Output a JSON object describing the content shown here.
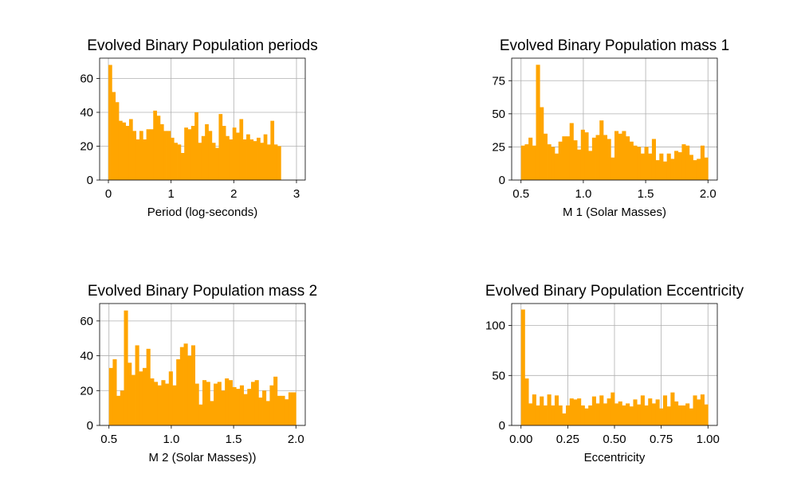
{
  "colors": {
    "bar": "#ffa500",
    "grid": "#b0b0b0",
    "axis": "#000000"
  },
  "chart_data": [
    {
      "type": "bar",
      "title": "Evolved Binary Population periods",
      "xlabel": "Period (log-seconds)",
      "ylabel": "",
      "grid": true,
      "xlim": [
        -0.14,
        3.14
      ],
      "ylim": [
        0,
        72
      ],
      "xticks": [
        0,
        1,
        2,
        3
      ],
      "xtick_labels": [
        "0",
        "1",
        "2",
        "3"
      ],
      "yticks": [
        0,
        20,
        40,
        60
      ],
      "ytick_labels": [
        "0",
        "20",
        "40",
        "60"
      ],
      "bin_start": 0.0,
      "bin_width": 0.055,
      "values": [
        68,
        52,
        46,
        35,
        34,
        32,
        36,
        29,
        24,
        29,
        24,
        30,
        30,
        41,
        38,
        33,
        29,
        29,
        25,
        22,
        21,
        16,
        31,
        30,
        32,
        40,
        22,
        26,
        33,
        29,
        22,
        19,
        39,
        32,
        26,
        24,
        31,
        28,
        36,
        24,
        27,
        24,
        23,
        25,
        22,
        27,
        21,
        35,
        21,
        20
      ]
    },
    {
      "type": "bar",
      "title": "Evolved Binary Population mass 1",
      "xlabel": "M 1 (Solar Masses)",
      "ylabel": "",
      "grid": true,
      "xlim": [
        0.425,
        2.075
      ],
      "ylim": [
        0,
        92
      ],
      "xticks": [
        0.5,
        1.0,
        1.5,
        2.0
      ],
      "xtick_labels": [
        "0.5",
        "1.0",
        "1.5",
        "2.0"
      ],
      "yticks": [
        0,
        25,
        50,
        75
      ],
      "ytick_labels": [
        "0",
        "25",
        "50",
        "75"
      ],
      "bin_start": 0.5,
      "bin_width": 0.03,
      "values": [
        26,
        27,
        32,
        26,
        87,
        55,
        35,
        27,
        25,
        20,
        29,
        33,
        33,
        43,
        30,
        23,
        38,
        36,
        22,
        32,
        34,
        45,
        34,
        31,
        17,
        37,
        35,
        37,
        33,
        29,
        26,
        25,
        20,
        25,
        20,
        31,
        15,
        20,
        14,
        20,
        16,
        22,
        21,
        27,
        26,
        19,
        15,
        16,
        26,
        17
      ]
    },
    {
      "type": "bar",
      "title": "Evolved Binary Population mass 2",
      "xlabel": "M 2 (Solar Masses))",
      "ylabel": "",
      "grid": true,
      "xlim": [
        0.425,
        2.075
      ],
      "ylim": [
        0,
        70
      ],
      "xticks": [
        0.5,
        1.0,
        1.5,
        2.0
      ],
      "xtick_labels": [
        "0.5",
        "1.0",
        "1.5",
        "2.0"
      ],
      "yticks": [
        0,
        20,
        40,
        60
      ],
      "ytick_labels": [
        "0",
        "20",
        "40",
        "60"
      ],
      "bin_start": 0.5,
      "bin_width": 0.03,
      "values": [
        33,
        38,
        17,
        20,
        66,
        36,
        29,
        46,
        31,
        33,
        44,
        27,
        25,
        23,
        26,
        24,
        31,
        23,
        38,
        45,
        47,
        40,
        46,
        24,
        12,
        26,
        25,
        14,
        24,
        25,
        20,
        27,
        26,
        22,
        21,
        23,
        18,
        21,
        25,
        26,
        16,
        20,
        14,
        23,
        28,
        17,
        17,
        15,
        19,
        19
      ]
    },
    {
      "type": "bar",
      "title": "Evolved Binary Population Eccentricity",
      "xlabel": "Eccentricity",
      "ylabel": "",
      "grid": true,
      "xlim": [
        -0.05,
        1.05
      ],
      "ylim": [
        0,
        122
      ],
      "xticks": [
        0.0,
        0.25,
        0.5,
        0.75,
        1.0
      ],
      "xtick_labels": [
        "0.00",
        "0.25",
        "0.50",
        "0.75",
        "1.00"
      ],
      "yticks": [
        0,
        50,
        100
      ],
      "ytick_labels": [
        "0",
        "50",
        "100"
      ],
      "bin_start": 0.0,
      "bin_width": 0.02,
      "values": [
        116,
        47,
        22,
        31,
        20,
        29,
        20,
        31,
        20,
        30,
        20,
        12,
        20,
        27,
        26,
        27,
        20,
        17,
        20,
        29,
        22,
        30,
        22,
        27,
        33,
        22,
        24,
        20,
        22,
        19,
        26,
        21,
        30,
        20,
        27,
        22,
        26,
        17,
        30,
        19,
        33,
        24,
        20,
        20,
        22,
        17,
        30,
        26,
        31,
        21
      ]
    }
  ]
}
